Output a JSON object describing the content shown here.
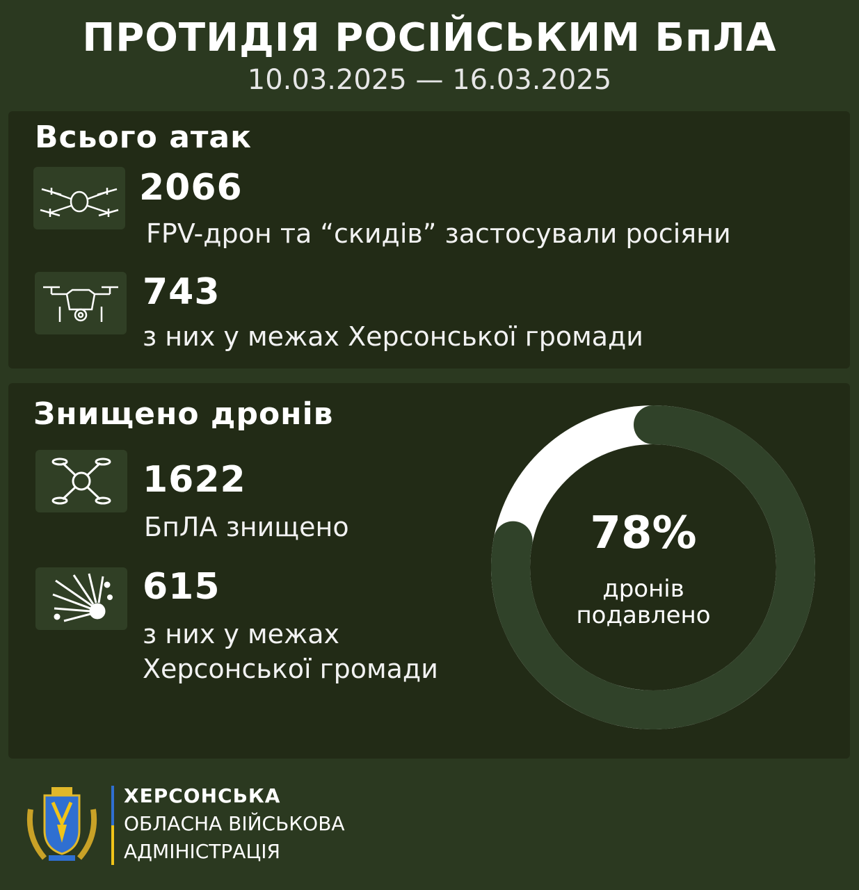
{
  "header": {
    "title": "ПРОТИДІЯ РОСІЙСЬКИМ БпЛА",
    "date_range": "10.03.2025 — 16.03.2025"
  },
  "attacks": {
    "title": "Всього атак",
    "items": [
      {
        "value": "2066",
        "description": "FPV-дрон та “скидів” застосували росіяни",
        "icon": "quadcopter-icon"
      },
      {
        "value": "743",
        "description": "з них у межах Херсонської громади",
        "icon": "camera-drone-icon"
      }
    ]
  },
  "destroyed": {
    "title": "Знищено дронів",
    "items": [
      {
        "value": "1622",
        "description": "БпЛА знищено",
        "icon": "drone-icon"
      },
      {
        "value": "615",
        "description_line1": "з них у межах",
        "description_line2": "Херсонської громади",
        "icon": "explosion-icon"
      }
    ],
    "ring": {
      "percent_label": "78%",
      "percent_value": 78,
      "label_line1": "дронів",
      "label_line2": "подавлено"
    }
  },
  "footer": {
    "line1": "ХЕРСОНСЬКА",
    "line2": "ОБЛАСНА ВІЙСЬКОВА",
    "line3": "АДМІНІСТРАЦІЯ"
  },
  "colors": {
    "background": "#2b3920",
    "panel": "#222b16",
    "icon_box": "#303f25",
    "ring_fill": "#ffffff",
    "ring_track": "#304229"
  }
}
